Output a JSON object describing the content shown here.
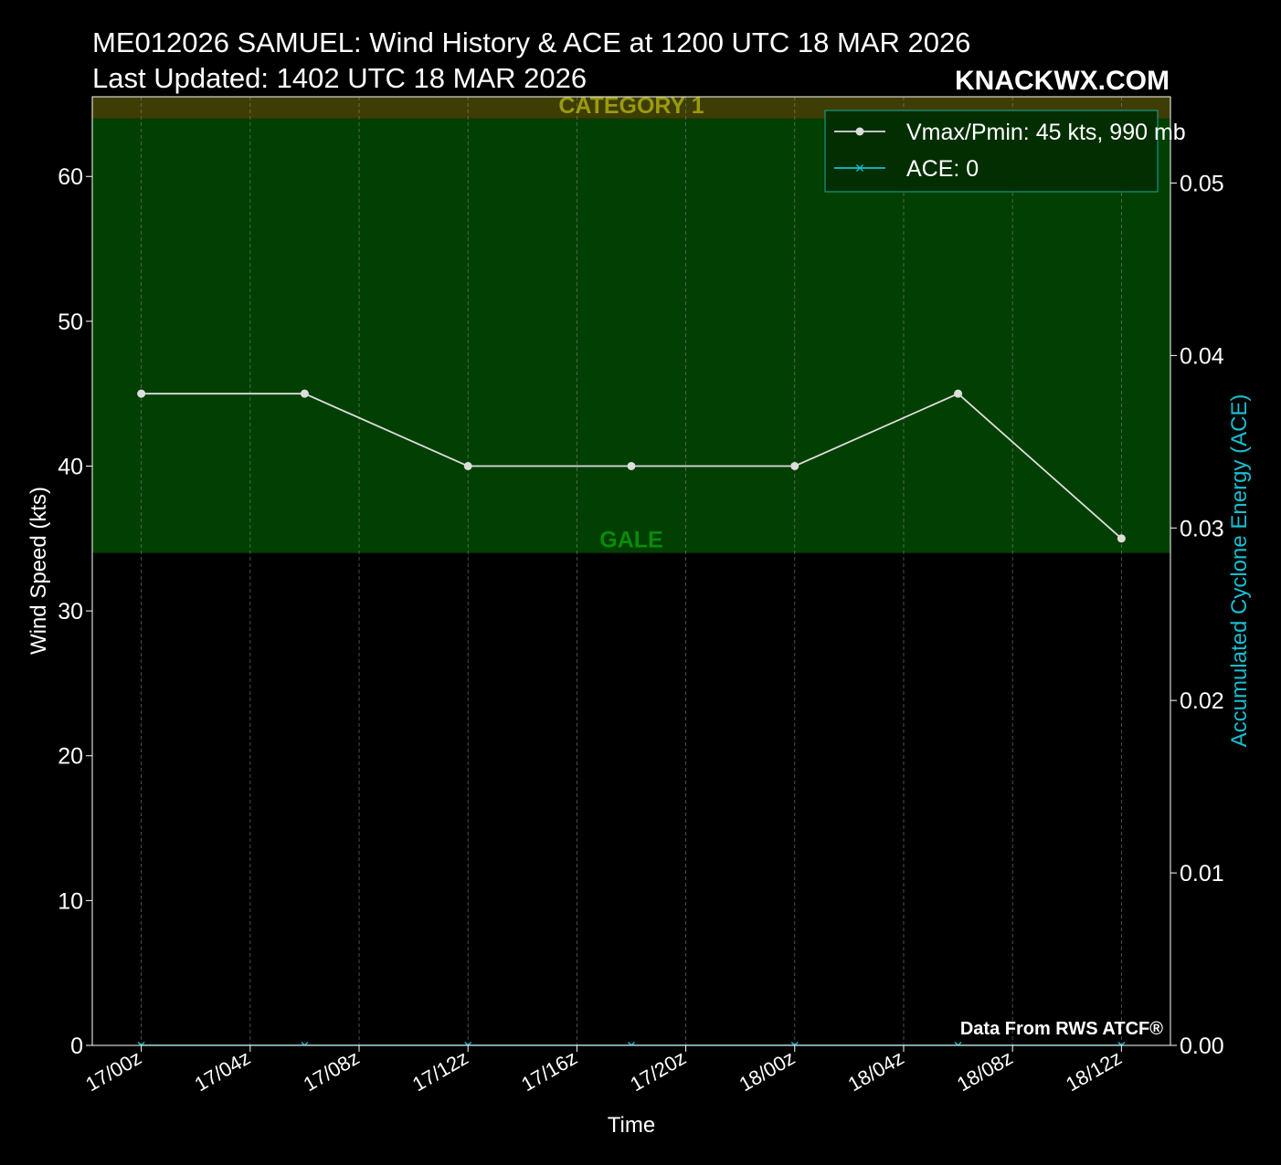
{
  "chart_data": {
    "type": "line",
    "title": "ME012026 SAMUEL: Wind History & ACE at 1200 UTC 18 MAR 2026",
    "subtitle": "Last Updated: 1402 UTC 18 MAR 2026",
    "brand": "KNACKWX.COM",
    "credit": "Data From RWS ATCF®",
    "x_label": "Time",
    "y_label": "Wind Speed (kts)",
    "y2_label": "Accumulated Cyclone Energy (ACE)",
    "x": [
      0,
      6,
      12,
      18,
      24,
      30,
      36
    ],
    "xlim": [
      -1.8,
      37.8
    ],
    "xticks": [
      {
        "value": 0,
        "label": "17/00z"
      },
      {
        "value": 4,
        "label": "17/04z"
      },
      {
        "value": 8,
        "label": "17/08z"
      },
      {
        "value": 12,
        "label": "17/12z"
      },
      {
        "value": 16,
        "label": "17/16z"
      },
      {
        "value": 20,
        "label": "17/20z"
      },
      {
        "value": 24,
        "label": "18/00z"
      },
      {
        "value": 28,
        "label": "18/04z"
      },
      {
        "value": 32,
        "label": "18/08z"
      },
      {
        "value": 36,
        "label": "18/12z"
      }
    ],
    "ylim": [
      0,
      65.5
    ],
    "yticks": [
      0,
      10,
      20,
      30,
      40,
      50,
      60
    ],
    "y2lim": [
      0,
      0.055
    ],
    "y2ticks": [
      {
        "value": 0,
        "label": "0.00"
      },
      {
        "value": 0.01,
        "label": "0.01"
      },
      {
        "value": 0.02,
        "label": "0.02"
      },
      {
        "value": 0.03,
        "label": "0.03"
      },
      {
        "value": 0.04,
        "label": "0.04"
      },
      {
        "value": 0.05,
        "label": "0.05"
      }
    ],
    "grid": true,
    "legend": "upper right",
    "bands": [
      {
        "name": "GALE",
        "from": 34,
        "to": 64,
        "color": "#023f02",
        "label_color": "#0a8a0a"
      },
      {
        "name": "CATEGORY 1",
        "from": 64,
        "to": 83,
        "color": "#3e3e04",
        "label_color": "#9a9a10"
      }
    ],
    "series": [
      {
        "name": "Vmax/Pmin: 45 kts, 990 mb",
        "color": "#dddddd",
        "marker": "circle",
        "values": [
          45,
          45,
          40,
          40,
          40,
          45,
          35
        ]
      },
      {
        "name": "ACE: 0",
        "color": "#17becf",
        "marker": "x",
        "axis": "y2",
        "values": [
          0,
          0,
          0,
          0,
          0,
          0,
          0
        ]
      }
    ]
  }
}
